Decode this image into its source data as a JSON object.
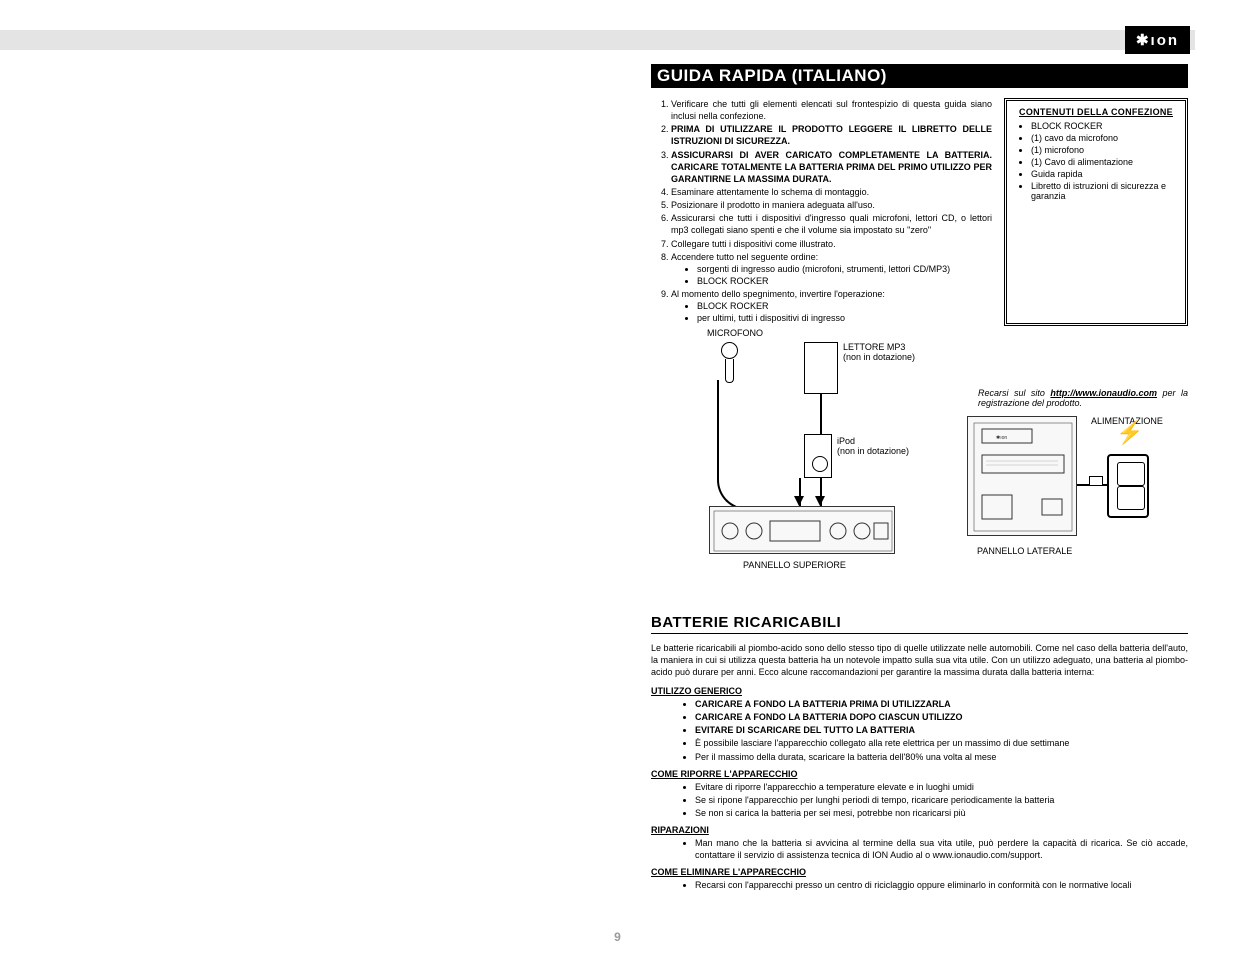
{
  "logo_text": "✱ıon",
  "title": "GUIDA RAPIDA (ITALIANO)",
  "steps": [
    {
      "text": "Verificare che tutti gli elementi elencati sul frontespizio di questa guida siano inclusi nella confezione.",
      "bold": false
    },
    {
      "text": "PRIMA DI UTILIZZARE IL PRODOTTO LEGGERE IL LIBRETTO DELLE ISTRUZIONI DI SICUREZZA.",
      "bold": true
    },
    {
      "text": "ASSICURARSI DI AVER CARICATO COMPLETAMENTE LA BATTERIA. CARICARE TOTALMENTE LA BATTERIA PRIMA DEL PRIMO UTILIZZO PER GARANTIRNE LA MASSIMA DURATA.",
      "bold": true
    },
    {
      "text": "Esaminare attentamente lo schema di montaggio.",
      "bold": false
    },
    {
      "text": "Posizionare il prodotto in maniera adeguata all'uso.",
      "bold": false
    },
    {
      "text": "Assicurarsi che tutti i dispositivi d'ingresso quali microfoni, lettori CD, o lettori mp3 collegati siano spenti e che il volume sia impostato su \"zero\"",
      "bold": false
    },
    {
      "text": "Collegare tutti i dispositivi come illustrato.",
      "bold": false
    },
    {
      "text": "Accendere tutto nel seguente ordine:",
      "bold": false,
      "sub": [
        "sorgenti di ingresso audio (microfoni, strumenti, lettori CD/MP3)",
        "BLOCK ROCKER"
      ]
    },
    {
      "text": "Al momento dello spegnimento, invertire l'operazione:",
      "bold": false,
      "sub": [
        "BLOCK ROCKER",
        "per ultimi, tutti i dispositivi di ingresso"
      ]
    }
  ],
  "box": {
    "title": "CONTENUTI  DELLA CONFEZIONE",
    "items": [
      "BLOCK ROCKER",
      "(1) cavo da microfono",
      "(1) microfono",
      "(1) Cavo di alimentazione",
      "Guida rapida",
      "Libretto di istruzioni di sicurezza e garanzia"
    ]
  },
  "reg_note_pre": "Recarsi sul sito ",
  "reg_note_url": "http://www.ionaudio.com",
  "reg_note_post": " per la registrazione del prodotto.",
  "labels": {
    "mic": "MICROFONO",
    "mp3": "LETTORE MP3",
    "mp3_sub": "(non in dotazione)",
    "ipod": "iPod",
    "ipod_sub": "(non in dotazione)",
    "top_panel": "PANNELLO SUPERIORE",
    "side_panel": "PANNELLO LATERALE",
    "power": "ALIMENTAZIONE"
  },
  "batt_title": "BATTERIE RICARICABILI",
  "batt_intro": "Le batterie ricaricabili al piombo-acido sono dello stesso tipo di quelle utilizzate nelle automobili. Come nel caso della batteria dell'auto, la maniera in cui si utilizza questa batteria ha un notevole impatto sulla sua vita utile. Con un utilizzo adeguato, una batteria al piombo-acido può durare per anni. Ecco alcune raccomandazioni per garantire la massima durata dalla batteria interna:",
  "sections": [
    {
      "head": "UTILIZZO GENERICO",
      "items": [
        {
          "t": "CARICARE A FONDO LA BATTERIA PRIMA DI UTILIZZARLA",
          "b": true
        },
        {
          "t": "CARICARE A FONDO LA BATTERIA DOPO CIASCUN UTILIZZO",
          "b": true
        },
        {
          "t": "EVITARE DI SCARICARE DEL TUTTO LA BATTERIA",
          "b": true
        },
        {
          "t": "È possibile lasciare l'apparecchio collegato alla rete elettrica per un massimo di due settimane",
          "b": false
        },
        {
          "t": "Per il massimo della durata, scaricare la batteria dell'80% una volta al mese",
          "b": false
        }
      ]
    },
    {
      "head": "COME RIPORRE L'APPARECCHIO",
      "items": [
        {
          "t": "Evitare di riporre l'apparecchio a temperature elevate e in luoghi umidi",
          "b": false
        },
        {
          "t": "Se si ripone l'apparecchio per lunghi periodi di tempo, ricaricare periodicamente la batteria",
          "b": false
        },
        {
          "t": "Se non si carica la batteria per sei mesi, potrebbe non ricaricarsi più",
          "b": false
        }
      ]
    },
    {
      "head": "RIPARAZIONI",
      "items": [
        {
          "t": "Man mano che la batteria si avvicina al termine della sua vita utile, può perdere la capacità di ricarica. Se ciò accade, contattare il servizio di assistenza tecnica di ION Audio al o www.ionaudio.com/support.",
          "b": false
        }
      ]
    },
    {
      "head": "COME ELIMINARE L'APPARECCHIO",
      "items": [
        {
          "t": "Recarsi con l'apparecchi presso un centro di riciclaggio oppure eliminarlo in conformità con le normative locali",
          "b": false
        }
      ]
    }
  ],
  "page_number": "9"
}
